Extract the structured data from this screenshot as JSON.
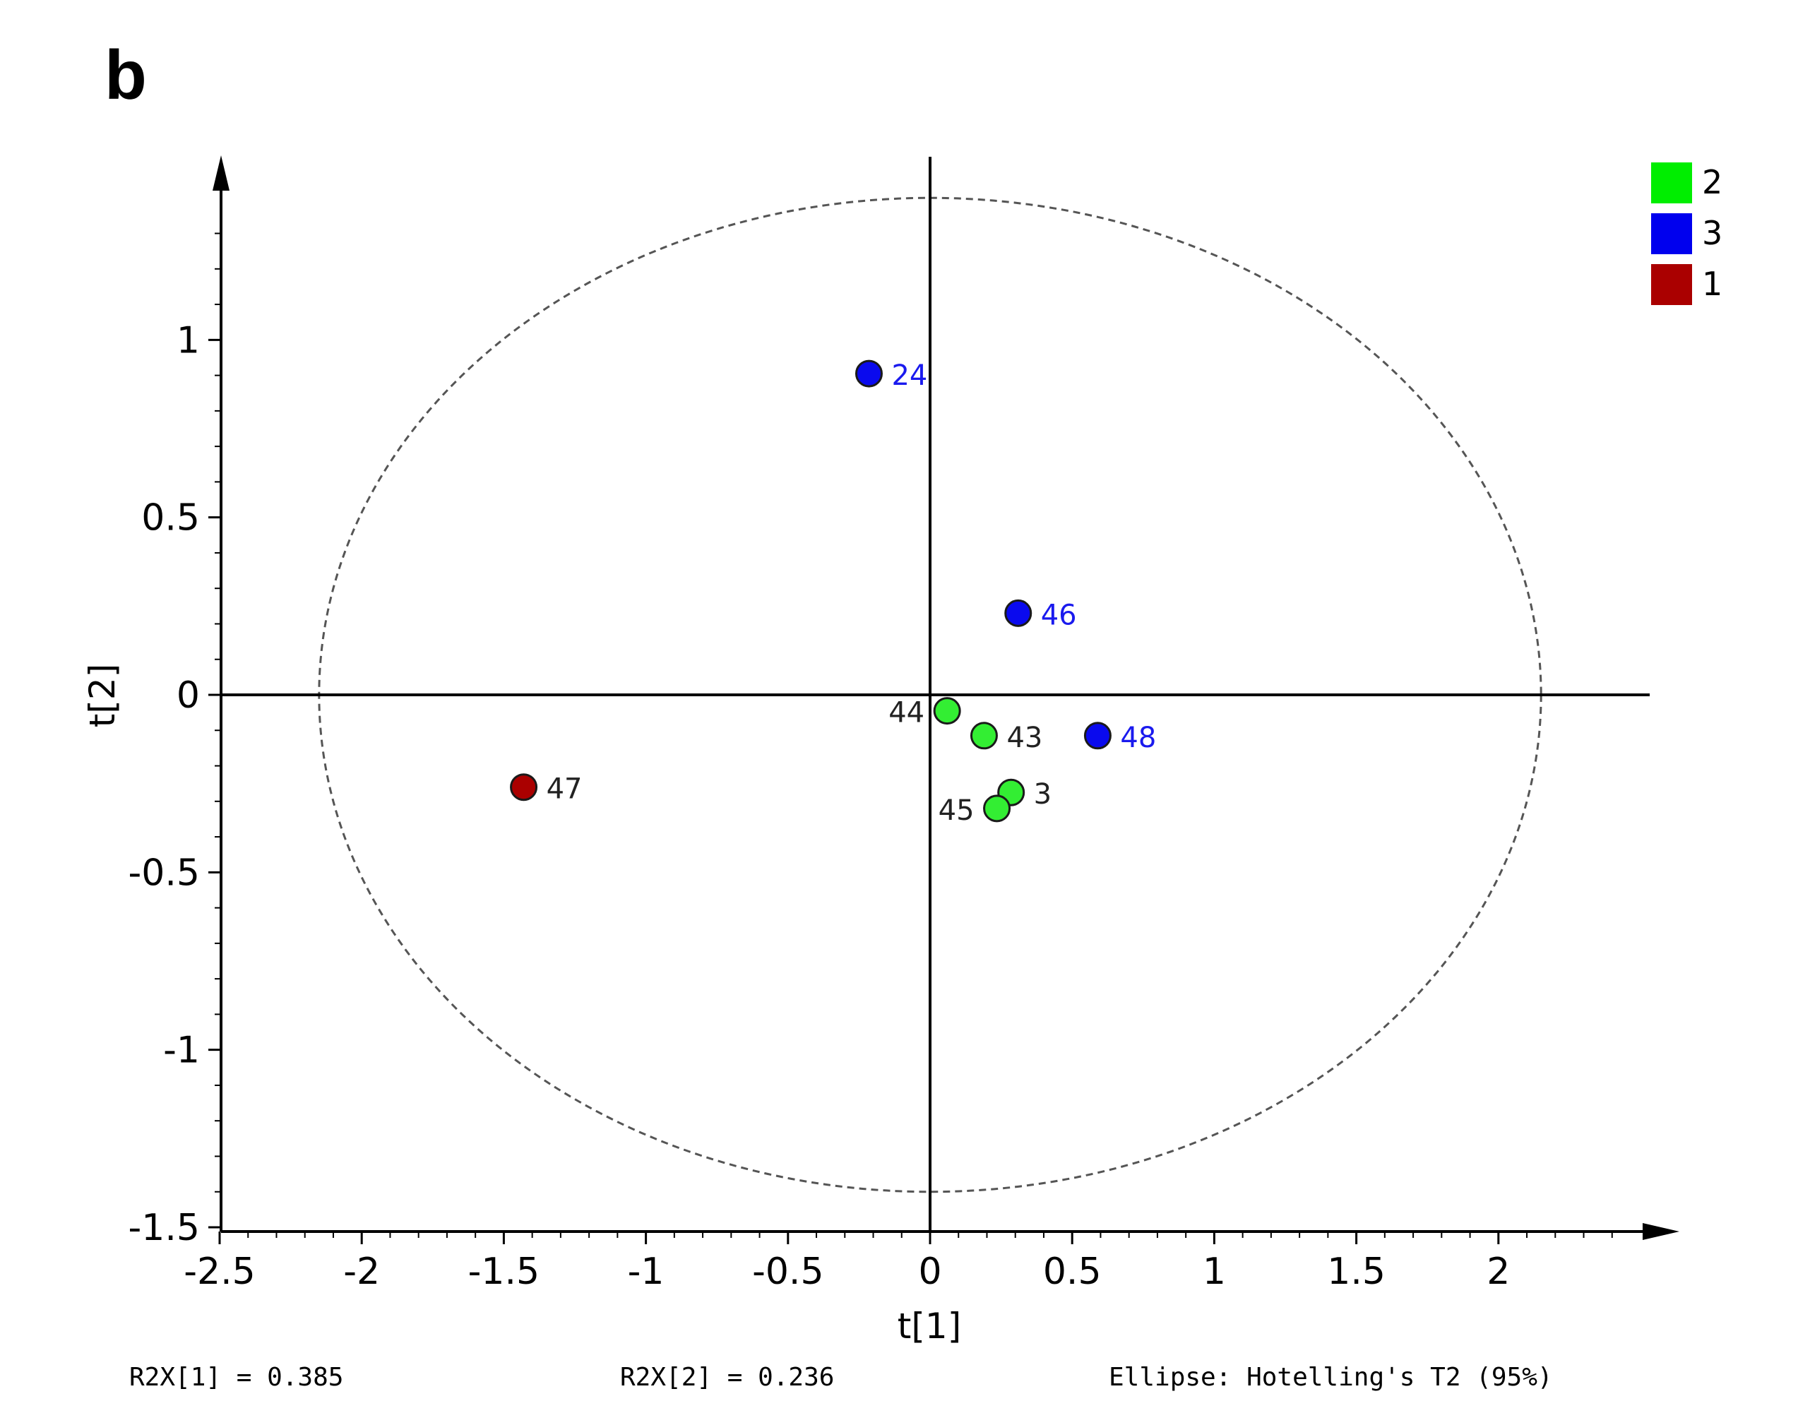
{
  "panel_label": "b",
  "chart_data": {
    "type": "scatter",
    "title": "",
    "xlabel": "t[1]",
    "ylabel": "t[2]",
    "xlim": [
      -2.5,
      2.5
    ],
    "ylim": [
      -1.5,
      1.5
    ],
    "x_ticks": [
      -2.5,
      -2,
      -1.5,
      -1,
      -0.5,
      0,
      0.5,
      1,
      1.5,
      2
    ],
    "x_tick_labels": [
      "-2.5",
      "-2",
      "-1.5",
      "-1",
      "-0.5",
      "0",
      "0.5",
      "1",
      "1.5",
      "2"
    ],
    "y_ticks": [
      -1.5,
      -1,
      -0.5,
      0,
      0.5,
      1
    ],
    "y_tick_labels": [
      "-1.5",
      "-1",
      "-0.5",
      "0",
      "0.5",
      "1"
    ],
    "ellipse": {
      "label": "Ellipse: Hotelling's T2 (95%)",
      "rx": 2.15,
      "ry": 1.4,
      "cx": 0,
      "cy": 0
    },
    "legend": {
      "position": "top-right",
      "entries": [
        {
          "name": "2",
          "color": "#00ee00"
        },
        {
          "name": "3",
          "color": "#0000ee"
        },
        {
          "name": "1",
          "color": "#aa0000"
        }
      ]
    },
    "series": [
      {
        "name": "2",
        "color": "#33ee33",
        "label_color": "#222222",
        "points": [
          {
            "label": "44",
            "x": 0.06,
            "y": -0.045,
            "label_side": "left"
          },
          {
            "label": "43",
            "x": 0.19,
            "y": -0.115,
            "label_side": "right"
          },
          {
            "label": "3",
            "x": 0.285,
            "y": -0.275,
            "label_side": "right"
          },
          {
            "label": "45",
            "x": 0.235,
            "y": -0.32,
            "label_side": "left"
          }
        ]
      },
      {
        "name": "3",
        "color": "#0a0aee",
        "label_color": "#1a1aee",
        "points": [
          {
            "label": "24",
            "x": -0.215,
            "y": 0.905,
            "label_side": "right"
          },
          {
            "label": "46",
            "x": 0.31,
            "y": 0.23,
            "label_side": "right"
          },
          {
            "label": "48",
            "x": 0.59,
            "y": -0.115,
            "label_side": "right"
          }
        ]
      },
      {
        "name": "1",
        "color": "#aa0000",
        "label_color": "#222222",
        "points": [
          {
            "label": "47",
            "x": -1.43,
            "y": -0.26,
            "label_side": "right"
          }
        ]
      }
    ]
  },
  "footer": {
    "r2x1": "R2X[1] = 0.385",
    "r2x2": "R2X[2] = 0.236",
    "ellipse_note": "Ellipse: Hotelling's T2 (95%)"
  }
}
